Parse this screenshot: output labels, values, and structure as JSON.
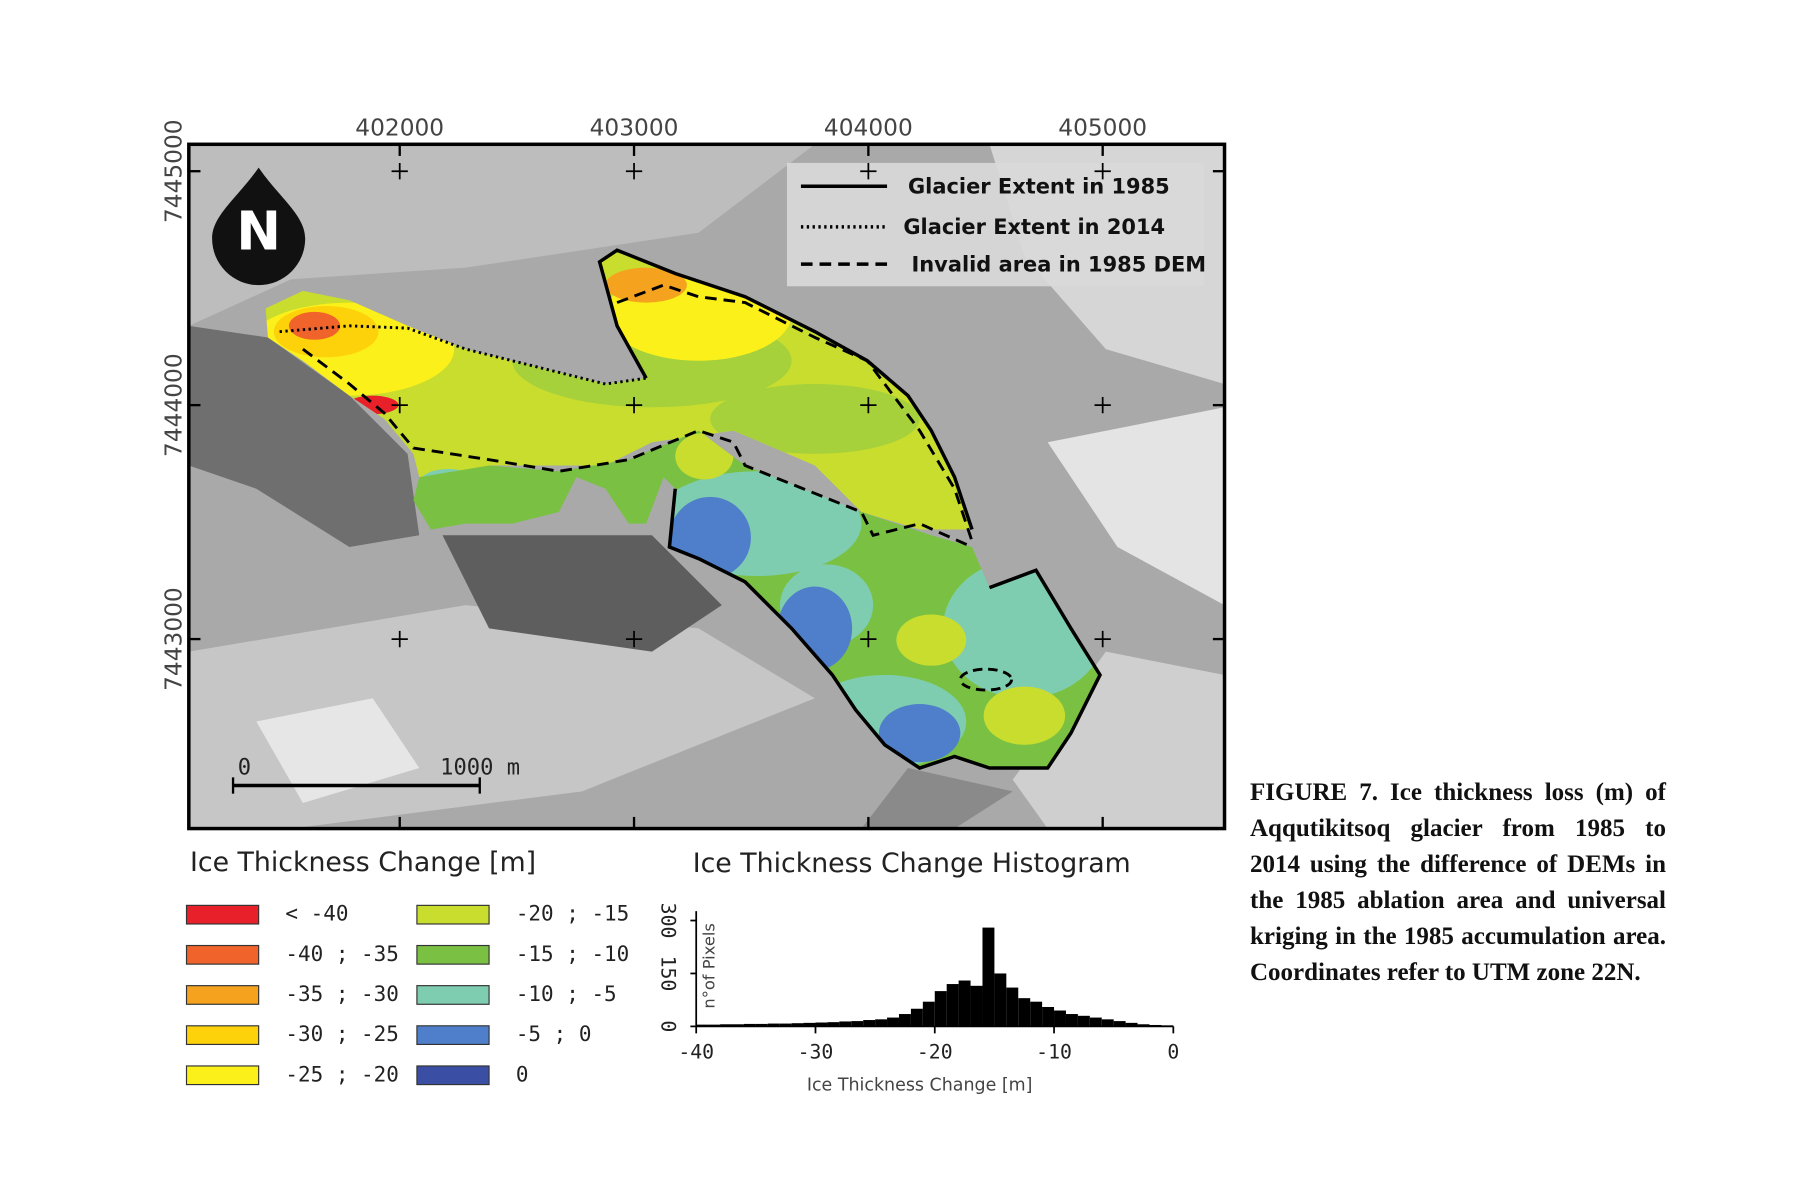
{
  "map": {
    "xlim": [
      401100,
      405520
    ],
    "ylim": [
      7442190,
      7445115
    ],
    "xticks": [
      402000,
      403000,
      404000,
      405000
    ],
    "yticks": [
      7443000,
      7444000,
      7445000
    ],
    "north": "N",
    "scale_bar": {
      "start": "0",
      "end": "1000 m"
    },
    "line_legend": [
      {
        "label": "Glacier Extent in 1985",
        "style": "solid"
      },
      {
        "label": "Glacier Extent in 2014",
        "style": "dotted"
      },
      {
        "label": "Invalid area in 1985 DEM",
        "style": "dashed"
      }
    ]
  },
  "legend": {
    "title": "Ice Thickness Change [m]",
    "items": [
      {
        "label": "< -40",
        "color": "#e8202a"
      },
      {
        "label": "-40 ; -35",
        "color": "#f0632a"
      },
      {
        "label": "-35 ; -30",
        "color": "#f5a21f"
      },
      {
        "label": "-30 ; -25",
        "color": "#fdd20a"
      },
      {
        "label": "-25 ; -20",
        "color": "#fbf01a"
      },
      {
        "label": "-20 ; -15",
        "color": "#c9dd2e"
      },
      {
        "label": "-15 ; -10",
        "color": "#7ac143"
      },
      {
        "label": "-10 ; -5",
        "color": "#7fcdb0"
      },
      {
        "label": "-5 ; 0",
        "color": "#4f7fcb"
      },
      {
        "label": "0",
        "color": "#3a4ea3"
      }
    ]
  },
  "chart_data": {
    "type": "histogram",
    "title": "Ice Thickness Change Histogram",
    "xlabel": "Ice Thickness Change [m]",
    "ylabel": "n°of Pixels",
    "bins": [
      -40,
      -39,
      -38,
      -37,
      -36,
      -35,
      -34,
      -33,
      -32,
      -31,
      -30,
      -29,
      -28,
      -27,
      -26,
      -25,
      -24,
      -23,
      -22,
      -21,
      -20,
      -19,
      -18,
      -17,
      -16,
      -15,
      -14,
      -13,
      -12,
      -11,
      -10,
      -9,
      -8,
      -7,
      -6,
      -5,
      -4,
      -3,
      -2,
      -1,
      0
    ],
    "values": [
      5,
      5,
      6,
      6,
      7,
      7,
      8,
      8,
      9,
      10,
      11,
      12,
      14,
      15,
      18,
      20,
      25,
      35,
      50,
      70,
      100,
      120,
      130,
      115,
      280,
      150,
      110,
      80,
      70,
      55,
      45,
      35,
      30,
      25,
      20,
      15,
      10,
      6,
      4,
      3
    ],
    "color": "#000000",
    "xlim": [
      -40,
      0
    ],
    "ylim": [
      0,
      310
    ],
    "xticks": [
      -40,
      -30,
      -20,
      -10,
      0
    ],
    "yticks": [
      0,
      150,
      300
    ]
  },
  "caption": "FIGURE 7. Ice thickness loss (m) of Aqqutikitsoq glacier from 1985 to 2014 using the difference of DEMs in the 1985 ablation area and universal kriging in the 1985 accumulation area. Coordinates refer to UTM zone 22N."
}
